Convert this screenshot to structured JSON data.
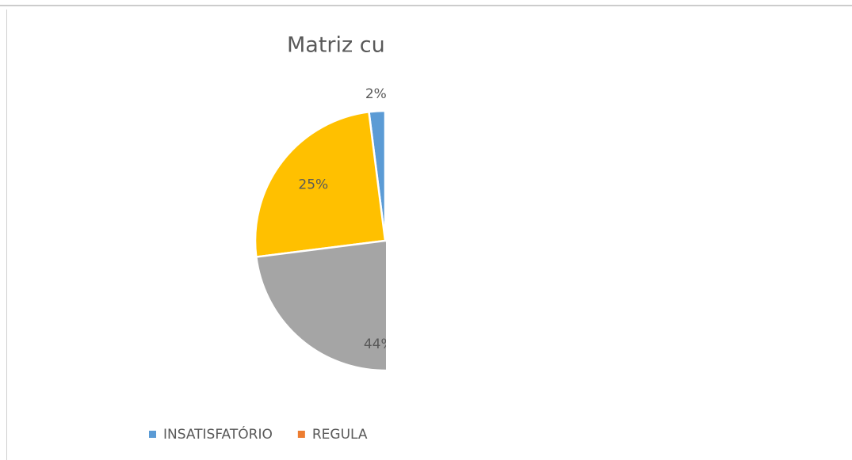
{
  "chart_data": {
    "type": "pie",
    "title": "Matriz cu",
    "values": [
      2,
      25,
      44
    ],
    "value_labels": [
      "2%",
      "25%",
      "44%"
    ],
    "colors": [
      "#5b9bd5",
      "#ffc000",
      "#a5a5a5"
    ],
    "legend": [
      {
        "name": "INSATISFATÓRIO",
        "color": "#5b9bd5"
      },
      {
        "name": "REGULA",
        "color": "#ed7d31"
      }
    ]
  }
}
